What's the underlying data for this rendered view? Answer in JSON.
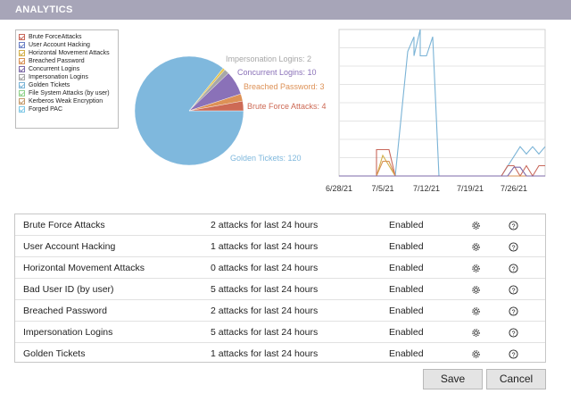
{
  "header": {
    "title": "ANALYTICS"
  },
  "legend": {
    "items": [
      {
        "label": "Brute ForceAttacks",
        "color": "#c8675a"
      },
      {
        "label": "User Account Hacking",
        "color": "#6a7fc4"
      },
      {
        "label": "Horizontal Movement Attacks",
        "color": "#d2b04a"
      },
      {
        "label": "Breached Password",
        "color": "#d89255"
      },
      {
        "label": "Concurrent Logins",
        "color": "#7d6aa8"
      },
      {
        "label": "Impersonation Logins",
        "color": "#a4a4a4"
      },
      {
        "label": "Golden Tickets",
        "color": "#7ab3d6"
      },
      {
        "label": "File System Attacks (by user)",
        "color": "#8fd18a"
      },
      {
        "label": "Kerberos Weak Encryption",
        "color": "#c49a6c"
      },
      {
        "label": "Forged PAC",
        "color": "#7fc8e6"
      }
    ]
  },
  "chart_data": [
    {
      "type": "pie",
      "slices": [
        {
          "name": "Golden Tickets",
          "label": "Golden Tickets: 120",
          "value": 120,
          "color": "#7fb8dd"
        },
        {
          "name": "Impersonation Logins",
          "label": "Impersonation Logins: 2",
          "value": 2,
          "color": "#a7a7a7"
        },
        {
          "name": "Concurrent Logins",
          "label": "Concurrent Logins: 10",
          "value": 10,
          "color": "#8a71b8"
        },
        {
          "name": "Breached Password",
          "label": "Breached Password: 3",
          "value": 3,
          "color": "#dd9156"
        },
        {
          "name": "Brute Force Attacks",
          "label": "Brute Force Attacks: 4",
          "value": 4,
          "color": "#cd6a55"
        },
        {
          "name": "Horizontal Movement Attacks",
          "label": "",
          "value": 1,
          "color": "#e6c651"
        }
      ]
    },
    {
      "type": "line",
      "x_ticks": [
        "6/28/21",
        "7/5/21",
        "7/12/21",
        "7/19/21",
        "7/26/21"
      ],
      "xlim": [
        "6/28/21",
        "7/31/21"
      ],
      "ylim": [
        0,
        100
      ],
      "grid": true,
      "series": [
        {
          "color": "#7ab3d6",
          "points": [
            [
              "6/28/21",
              0
            ],
            [
              "7/7/21",
              0
            ],
            [
              "7/9/21",
              85
            ],
            [
              "7/10/21",
              95
            ],
            [
              "7/10/21",
              82
            ],
            [
              "7/11/21",
              100
            ],
            [
              "7/11/21",
              82
            ],
            [
              "7/12/21",
              82
            ],
            [
              "7/13/21",
              95
            ],
            [
              "7/14/21",
              0
            ],
            [
              "7/24/21",
              0
            ],
            [
              "7/27/21",
              20
            ],
            [
              "7/28/21",
              15
            ],
            [
              "7/29/21",
              20
            ],
            [
              "7/30/21",
              15
            ],
            [
              "7/31/21",
              20
            ]
          ]
        },
        {
          "color": "#c8675a",
          "points": [
            [
              "6/28/21",
              0
            ],
            [
              "7/4/21",
              0
            ],
            [
              "7/4/21",
              18
            ],
            [
              "7/6/21",
              18
            ],
            [
              "7/7/21",
              0
            ],
            [
              "7/24/21",
              0
            ],
            [
              "7/25/21",
              7
            ],
            [
              "7/26/21",
              7
            ],
            [
              "7/27/21",
              0
            ],
            [
              "7/28/21",
              7
            ],
            [
              "7/29/21",
              0
            ],
            [
              "7/30/21",
              7
            ],
            [
              "7/31/21",
              7
            ]
          ]
        },
        {
          "color": "#d2b04a",
          "points": [
            [
              "6/28/21",
              0
            ],
            [
              "7/4/21",
              0
            ],
            [
              "7/5/21",
              14
            ],
            [
              "7/6/21",
              7
            ],
            [
              "7/7/21",
              0
            ],
            [
              "7/31/21",
              0
            ]
          ]
        },
        {
          "color": "#d89255",
          "points": [
            [
              "6/28/21",
              0
            ],
            [
              "7/4/21",
              0
            ],
            [
              "7/5/21",
              10
            ],
            [
              "7/6/21",
              10
            ],
            [
              "7/7/21",
              0
            ],
            [
              "7/31/21",
              0
            ]
          ]
        },
        {
          "color": "#7d6aa8",
          "points": [
            [
              "6/28/21",
              0
            ],
            [
              "7/25/21",
              0
            ],
            [
              "7/26/21",
              6
            ],
            [
              "7/27/21",
              6
            ],
            [
              "7/28/21",
              0
            ],
            [
              "7/31/21",
              0
            ]
          ]
        }
      ]
    }
  ],
  "table": {
    "rows": [
      {
        "name": "Brute Force Attacks",
        "attacks": "2 attacks for last 24 hours",
        "status": "Enabled"
      },
      {
        "name": "User Account Hacking",
        "attacks": "1 attacks for last 24 hours",
        "status": "Enabled"
      },
      {
        "name": "Horizontal Movement Attacks",
        "attacks": "0 attacks for last 24 hours",
        "status": "Enabled"
      },
      {
        "name": "Bad User ID (by user)",
        "attacks": "5 attacks for last 24 hours",
        "status": "Enabled"
      },
      {
        "name": "Breached Password",
        "attacks": "2 attacks for last 24 hours",
        "status": "Enabled"
      },
      {
        "name": "Impersonation Logins",
        "attacks": "5 attacks for last 24 hours",
        "status": "Enabled"
      },
      {
        "name": "Golden Tickets",
        "attacks": "1 attacks for last 24 hours",
        "status": "Enabled"
      }
    ]
  },
  "buttons": {
    "save": "Save",
    "cancel": "Cancel"
  }
}
